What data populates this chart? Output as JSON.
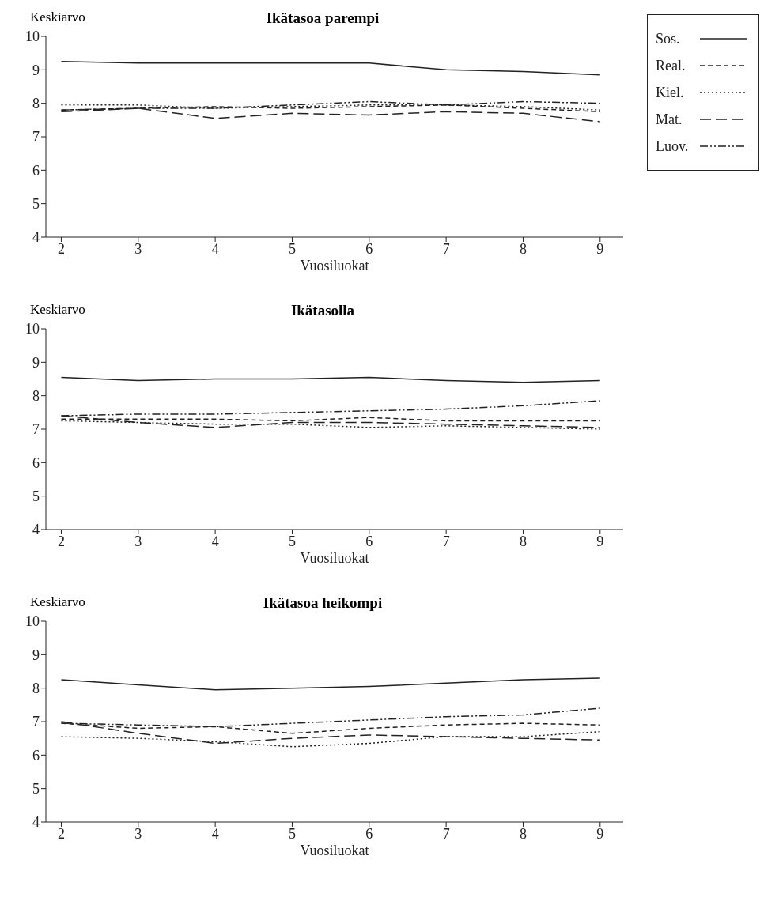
{
  "chart_data": [
    {
      "type": "line",
      "title": "Ikätasoa parempi",
      "ylabel": "Keskiarvo",
      "xlabel": "Vuosiluokat",
      "x": [
        2,
        3,
        4,
        5,
        6,
        7,
        8,
        9
      ],
      "xlim": [
        1.8,
        9.3
      ],
      "xticks": [
        2,
        3,
        4,
        5,
        6,
        7,
        8,
        9
      ],
      "ylim": [
        4,
        10
      ],
      "yticks": [
        4,
        5,
        6,
        7,
        8,
        9,
        10
      ],
      "legend": "right",
      "marker": "none",
      "series": [
        {
          "name": "Sos.",
          "color": "#222222",
          "line_style": "solid",
          "values": [
            9.25,
            9.2,
            9.2,
            9.2,
            9.2,
            9.0,
            8.95,
            8.85
          ]
        },
        {
          "name": "Real.",
          "color": "#222222",
          "line_style": "dashed",
          "values": [
            7.8,
            7.85,
            7.9,
            7.85,
            7.9,
            7.95,
            7.85,
            7.75
          ]
        },
        {
          "name": "Kiel.",
          "color": "#222222",
          "line_style": "dotted",
          "values": [
            7.95,
            7.95,
            7.85,
            7.9,
            7.95,
            7.95,
            7.9,
            7.8
          ]
        },
        {
          "name": "Mat.",
          "color": "#222222",
          "line_style": "longdash",
          "values": [
            7.75,
            7.85,
            7.55,
            7.7,
            7.65,
            7.75,
            7.7,
            7.45
          ]
        },
        {
          "name": "Luov.",
          "color": "#222222",
          "line_style": "dashdotdot",
          "values": [
            7.8,
            7.85,
            7.85,
            7.95,
            8.05,
            7.95,
            8.05,
            8.0
          ]
        }
      ]
    },
    {
      "type": "line",
      "title": "Ikätasolla",
      "ylabel": "Keskiarvo",
      "xlabel": "Vuosiluokat",
      "x": [
        2,
        3,
        4,
        5,
        6,
        7,
        8,
        9
      ],
      "xlim": [
        1.8,
        9.3
      ],
      "xticks": [
        2,
        3,
        4,
        5,
        6,
        7,
        8,
        9
      ],
      "ylim": [
        4,
        10
      ],
      "yticks": [
        4,
        5,
        6,
        7,
        8,
        9,
        10
      ],
      "marker": "none",
      "series": [
        {
          "color": "#222222",
          "line_style": "solid",
          "values": [
            8.55,
            8.45,
            8.5,
            8.5,
            8.55,
            8.45,
            8.4,
            8.45
          ]
        },
        {
          "color": "#222222",
          "line_style": "dashed",
          "values": [
            7.3,
            7.3,
            7.3,
            7.25,
            7.35,
            7.25,
            7.25,
            7.25
          ]
        },
        {
          "color": "#222222",
          "line_style": "dotted",
          "values": [
            7.25,
            7.2,
            7.15,
            7.15,
            7.05,
            7.1,
            7.05,
            7.0
          ]
        },
        {
          "color": "#222222",
          "line_style": "longdash",
          "values": [
            7.4,
            7.2,
            7.05,
            7.2,
            7.2,
            7.15,
            7.1,
            7.05
          ]
        },
        {
          "color": "#222222",
          "line_style": "dashdotdot",
          "values": [
            7.4,
            7.45,
            7.45,
            7.5,
            7.55,
            7.6,
            7.7,
            7.85
          ]
        }
      ]
    },
    {
      "type": "line",
      "title": "Ikätasoa heikompi",
      "ylabel": "Keskiarvo",
      "xlabel": "Vuosiluokat",
      "x": [
        2,
        3,
        4,
        5,
        6,
        7,
        8,
        9
      ],
      "xlim": [
        1.8,
        9.3
      ],
      "xticks": [
        2,
        3,
        4,
        5,
        6,
        7,
        8,
        9
      ],
      "ylim": [
        4,
        10
      ],
      "yticks": [
        4,
        5,
        6,
        7,
        8,
        9,
        10
      ],
      "marker": "none",
      "series": [
        {
          "color": "#222222",
          "line_style": "solid",
          "values": [
            8.25,
            8.1,
            7.95,
            8.0,
            8.05,
            8.15,
            8.25,
            8.3
          ]
        },
        {
          "color": "#222222",
          "line_style": "dashed",
          "values": [
            6.95,
            6.8,
            6.85,
            6.65,
            6.8,
            6.9,
            6.95,
            6.9
          ]
        },
        {
          "color": "#222222",
          "line_style": "dotted",
          "values": [
            6.55,
            6.5,
            6.4,
            6.25,
            6.35,
            6.55,
            6.55,
            6.7
          ]
        },
        {
          "color": "#222222",
          "line_style": "longdash",
          "values": [
            7.0,
            6.65,
            6.35,
            6.5,
            6.6,
            6.55,
            6.5,
            6.45
          ]
        },
        {
          "color": "#222222",
          "line_style": "dashdotdot",
          "values": [
            6.95,
            6.9,
            6.85,
            6.95,
            7.05,
            7.15,
            7.2,
            7.4
          ]
        }
      ]
    }
  ]
}
